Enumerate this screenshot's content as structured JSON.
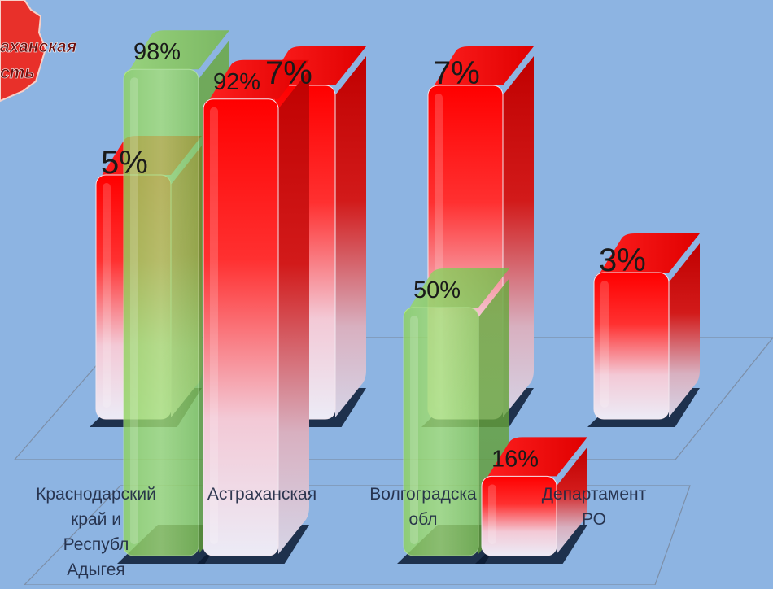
{
  "colors": {
    "background": "#8db4e2",
    "red_series": "#ff0000",
    "green_series": "#7ec850",
    "map_fragment": "#e8302a"
  },
  "map_fragment": {
    "label_lines": [
      "аханская",
      "сть"
    ]
  },
  "chart_data": {
    "type": "bar",
    "title": "",
    "xlabel": "",
    "ylabel": "",
    "ylim": [
      0,
      100
    ],
    "grid": false,
    "legend": "none",
    "rows": [
      {
        "name": "back",
        "color": "red",
        "categories": [
          "",
          "",
          "",
          ""
        ],
        "values": [
          5,
          7,
          7,
          3
        ],
        "labels": [
          "5%",
          "7%",
          "7%",
          "3%"
        ]
      },
      {
        "name": "front",
        "color_by_point": [
          "green",
          "red",
          "green",
          "red"
        ],
        "categories": [
          "Краснодарский край и Республика Адыгея",
          "Астраханская",
          "Волгоградская область",
          "Департамент РО"
        ],
        "category_lines": [
          [
            "Краснодарский",
            "край и",
            "Республ",
            "Адыгея"
          ],
          [
            "Астраханская"
          ],
          [
            "Волгоградска",
            "обл"
          ],
          [
            "Департамент",
            "РО"
          ]
        ],
        "values": [
          98,
          92,
          50,
          16
        ],
        "labels": [
          "98%",
          "92%",
          "50%",
          "16%"
        ]
      }
    ]
  }
}
